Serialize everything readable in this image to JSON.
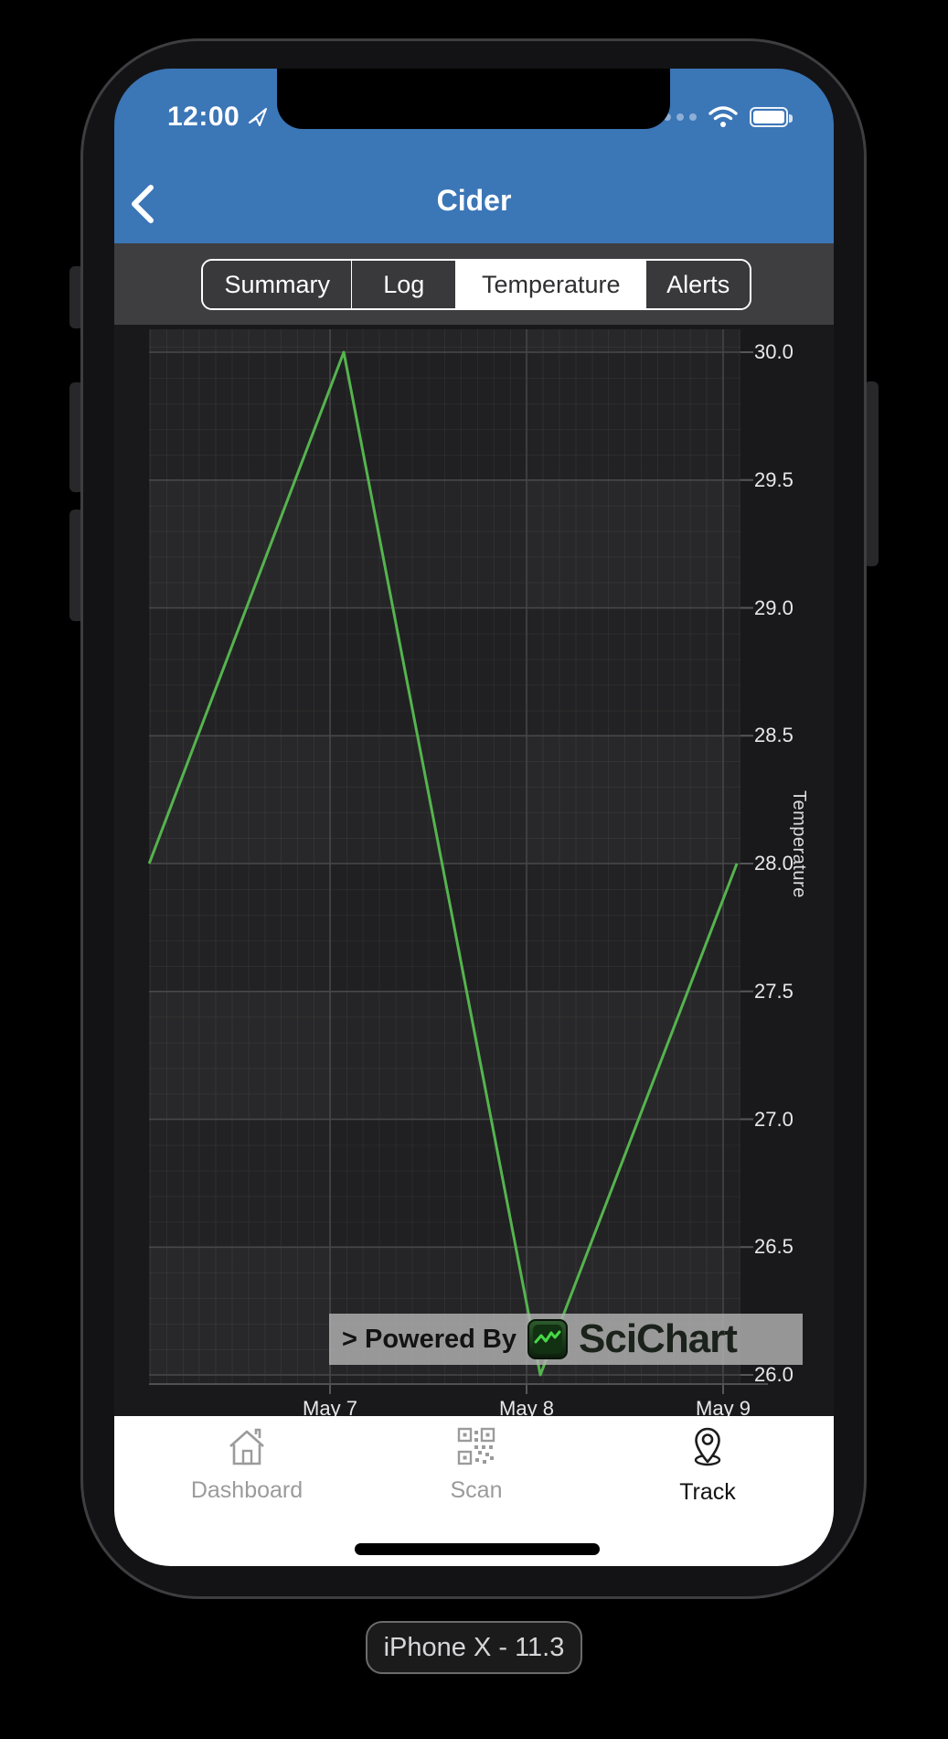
{
  "status_bar": {
    "time": "12:00"
  },
  "nav": {
    "title": "Cider"
  },
  "tabs": {
    "items": [
      "Summary",
      "Log",
      "Temperature",
      "Alerts"
    ],
    "selected": "Temperature",
    "selected_bg": "#ffffff",
    "strip_bg": "#3e3e40"
  },
  "chart_data": {
    "type": "line",
    "title": "",
    "xlabel": "",
    "ylabel": "Temperature",
    "ylim": [
      26.0,
      30.0
    ],
    "grid": true,
    "legend": "none",
    "y_axis_position": "right",
    "y_ticks": [
      30.0,
      29.5,
      29.0,
      28.5,
      28.0,
      27.5,
      27.0,
      26.5,
      26.0
    ],
    "y_tick_labels": [
      "30.0",
      "29.5",
      "29.0",
      "28.5",
      "28.0",
      "27.5",
      "27.0",
      "26.5",
      "26.0"
    ],
    "x_ticks_days": [
      7,
      8,
      9
    ],
    "x_tick_labels": [
      "May 7",
      "May 8",
      "May 9"
    ],
    "x_days": [
      6.08,
      7.07,
      8.07,
      9.07
    ],
    "series": [
      {
        "name": "Temperature",
        "values": [
          28.0,
          30.0,
          26.0,
          28.0
        ]
      }
    ],
    "line_color": "#55b44e",
    "plot_bg": "#222224"
  },
  "watermark": {
    "prefix": "> Powered By",
    "brand": "SciChart"
  },
  "tab_bar": {
    "items": [
      {
        "label": "Dashboard",
        "icon": "home-icon",
        "active": false
      },
      {
        "label": "Scan",
        "icon": "qr-code-icon",
        "active": false
      },
      {
        "label": "Track",
        "icon": "location-pin-icon",
        "active": true
      }
    ]
  },
  "device_label": "iPhone X - 11.3",
  "colors": {
    "header_blue": "#3b76b7",
    "line_green": "#55b44e"
  }
}
